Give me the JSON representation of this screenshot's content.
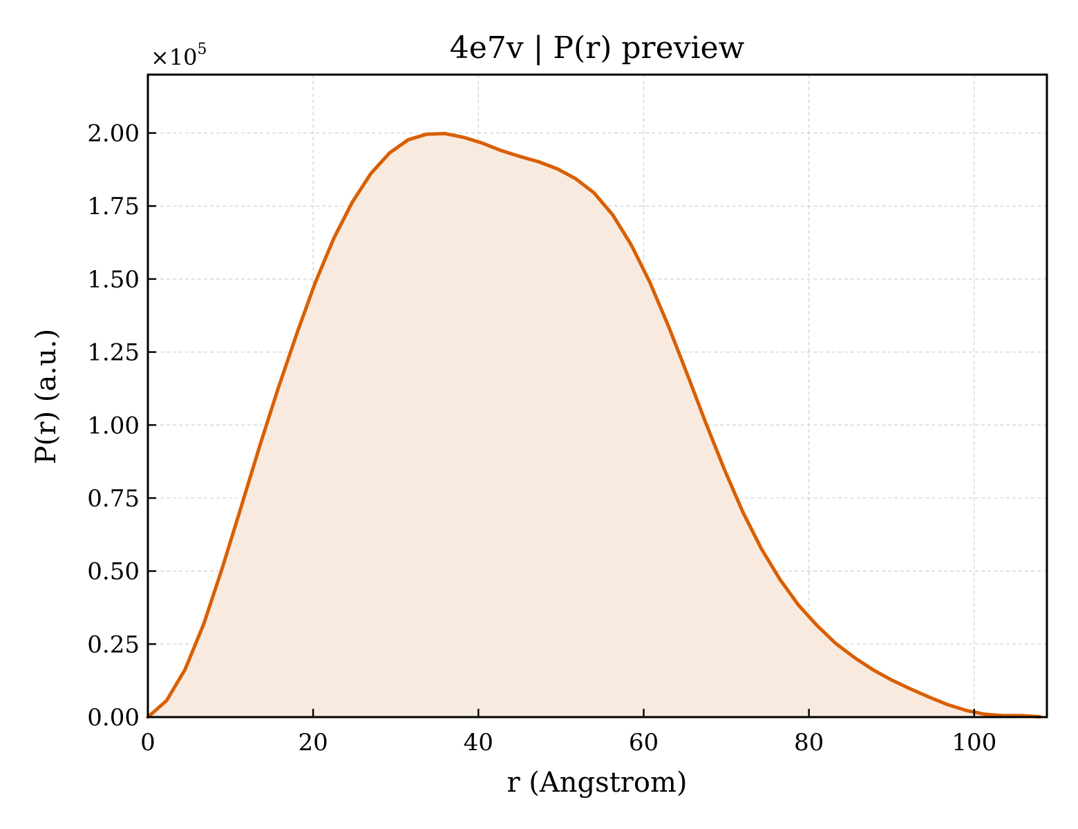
{
  "chart_data": {
    "type": "area",
    "title": "4e7v | P(r) preview",
    "xlabel": "r (Angstrom)",
    "ylabel": "P(r) (a.u.)",
    "y_multiplier_label": "×10",
    "y_multiplier_exponent": "5",
    "xlim": [
      0,
      108.8
    ],
    "ylim": [
      0,
      2.2
    ],
    "x_ticks": [
      0,
      20,
      40,
      60,
      80,
      100
    ],
    "x_tick_labels": [
      "0",
      "20",
      "40",
      "60",
      "80",
      "100"
    ],
    "y_ticks": [
      0,
      0.25,
      0.5,
      0.75,
      1.0,
      1.25,
      1.5,
      1.75,
      2.0
    ],
    "y_tick_labels": [
      "0.00",
      "0.25",
      "0.50",
      "0.75",
      "1.00",
      "1.25",
      "1.50",
      "1.75",
      "2.00"
    ],
    "grid": true,
    "line_color": "#d95f02",
    "fill_color": "#f9eadf",
    "series": [
      {
        "x": [
          0,
          2.25,
          4.5,
          6.75,
          9.0,
          11.25,
          13.5,
          15.75,
          18.0,
          20.25,
          22.5,
          24.75,
          27.0,
          29.25,
          31.5,
          33.75,
          36.0,
          38.25,
          40.5,
          42.75,
          45.0,
          47.25,
          49.5,
          51.75,
          54.0,
          56.25,
          58.5,
          60.75,
          63.0,
          65.25,
          67.5,
          69.75,
          72.0,
          74.25,
          76.5,
          78.75,
          81.0,
          83.25,
          85.5,
          87.75,
          90.0,
          92.25,
          94.5,
          96.75,
          99.0,
          101.25,
          103.5,
          105.75,
          108.0
        ],
        "y": [
          0.0,
          0.056,
          0.163,
          0.318,
          0.51,
          0.716,
          0.925,
          1.124,
          1.311,
          1.487,
          1.639,
          1.764,
          1.862,
          1.932,
          1.977,
          1.996,
          1.998,
          1.985,
          1.965,
          1.94,
          1.92,
          1.902,
          1.878,
          1.844,
          1.795,
          1.72,
          1.617,
          1.489,
          1.339,
          1.176,
          1.009,
          0.849,
          0.702,
          0.576,
          0.471,
          0.383,
          0.313,
          0.252,
          0.204,
          0.162,
          0.127,
          0.097,
          0.069,
          0.043,
          0.023,
          0.01,
          0.005,
          0.005,
          0.001
        ]
      }
    ]
  }
}
